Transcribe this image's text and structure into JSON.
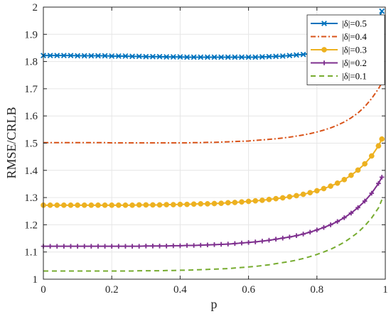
{
  "chart_data": {
    "type": "line",
    "xlabel": "p",
    "ylabel": "RMSE/CRLB",
    "xlim": [
      0,
      1
    ],
    "ylim": [
      1,
      2
    ],
    "x_ticks": [
      "0",
      "0.2",
      "0.4",
      "0.6",
      "0.8",
      "1"
    ],
    "y_ticks": [
      "1",
      "1.1",
      "1.2",
      "1.3",
      "1.4",
      "1.5",
      "1.6",
      "1.7",
      "1.8",
      "1.9",
      "2"
    ],
    "grid": true,
    "legend_position": "top-right",
    "x": [
      0,
      0.02,
      0.04,
      0.06,
      0.08,
      0.1,
      0.12,
      0.14,
      0.16,
      0.18,
      0.2,
      0.22,
      0.24,
      0.26,
      0.28,
      0.3,
      0.32,
      0.34,
      0.36,
      0.38,
      0.4,
      0.42,
      0.44,
      0.46,
      0.48,
      0.5,
      0.52,
      0.54,
      0.56,
      0.58,
      0.6,
      0.62,
      0.64,
      0.66,
      0.68,
      0.7,
      0.72,
      0.74,
      0.76,
      0.78,
      0.8,
      0.82,
      0.84,
      0.86,
      0.88,
      0.9,
      0.92,
      0.94,
      0.96,
      0.98,
      0.99
    ],
    "series": [
      {
        "name": "|δ|=0.5",
        "color": "#0072BD",
        "line_style": "solid",
        "marker": "x",
        "values": [
          1.822,
          1.822,
          1.822,
          1.822,
          1.822,
          1.821,
          1.821,
          1.821,
          1.821,
          1.821,
          1.82,
          1.82,
          1.82,
          1.819,
          1.819,
          1.818,
          1.818,
          1.818,
          1.817,
          1.817,
          1.817,
          1.816,
          1.816,
          1.816,
          1.816,
          1.816,
          1.816,
          1.816,
          1.816,
          1.816,
          1.816,
          1.816,
          1.817,
          1.818,
          1.819,
          1.82,
          1.822,
          1.824,
          1.826,
          1.829,
          1.833,
          1.837,
          1.842,
          1.848,
          1.856,
          1.866,
          1.879,
          1.896,
          1.92,
          1.955,
          1.985
        ]
      },
      {
        "name": "|δ|=0.4",
        "color": "#D95319",
        "line_style": "dashdot",
        "marker": "none",
        "values": [
          1.502,
          1.502,
          1.502,
          1.502,
          1.502,
          1.502,
          1.502,
          1.502,
          1.502,
          1.502,
          1.501,
          1.501,
          1.501,
          1.501,
          1.501,
          1.501,
          1.501,
          1.501,
          1.501,
          1.501,
          1.501,
          1.501,
          1.502,
          1.502,
          1.503,
          1.503,
          1.504,
          1.505,
          1.506,
          1.507,
          1.508,
          1.51,
          1.512,
          1.514,
          1.516,
          1.519,
          1.522,
          1.526,
          1.53,
          1.535,
          1.541,
          1.548,
          1.556,
          1.566,
          1.578,
          1.593,
          1.611,
          1.634,
          1.664,
          1.7,
          1.722
        ]
      },
      {
        "name": "|δ|=0.3",
        "color": "#EDB120",
        "line_style": "solid",
        "marker": "o",
        "values": [
          1.272,
          1.272,
          1.272,
          1.272,
          1.272,
          1.272,
          1.272,
          1.272,
          1.272,
          1.272,
          1.272,
          1.272,
          1.272,
          1.272,
          1.273,
          1.273,
          1.273,
          1.273,
          1.274,
          1.274,
          1.275,
          1.275,
          1.276,
          1.277,
          1.277,
          1.278,
          1.279,
          1.281,
          1.282,
          1.284,
          1.286,
          1.288,
          1.29,
          1.293,
          1.296,
          1.299,
          1.303,
          1.307,
          1.312,
          1.318,
          1.325,
          1.333,
          1.342,
          1.353,
          1.366,
          1.382,
          1.401,
          1.424,
          1.453,
          1.49,
          1.515
        ]
      },
      {
        "name": "|δ|=0.2",
        "color": "#7E2F8E",
        "line_style": "solid",
        "marker": "+",
        "values": [
          1.121,
          1.121,
          1.121,
          1.121,
          1.121,
          1.121,
          1.121,
          1.121,
          1.121,
          1.121,
          1.121,
          1.121,
          1.121,
          1.121,
          1.121,
          1.122,
          1.122,
          1.122,
          1.122,
          1.123,
          1.123,
          1.124,
          1.124,
          1.125,
          1.126,
          1.127,
          1.128,
          1.129,
          1.131,
          1.133,
          1.135,
          1.137,
          1.14,
          1.143,
          1.147,
          1.151,
          1.155,
          1.16,
          1.166,
          1.173,
          1.181,
          1.19,
          1.2,
          1.212,
          1.226,
          1.243,
          1.263,
          1.287,
          1.316,
          1.352,
          1.375
        ]
      },
      {
        "name": "|δ|=0.1",
        "color": "#77AC30",
        "line_style": "dashed",
        "marker": "none",
        "values": [
          1.03,
          1.03,
          1.03,
          1.03,
          1.03,
          1.03,
          1.03,
          1.03,
          1.03,
          1.03,
          1.03,
          1.03,
          1.03,
          1.03,
          1.031,
          1.031,
          1.031,
          1.031,
          1.032,
          1.032,
          1.033,
          1.033,
          1.034,
          1.035,
          1.036,
          1.037,
          1.038,
          1.039,
          1.041,
          1.043,
          1.045,
          1.047,
          1.05,
          1.053,
          1.057,
          1.061,
          1.065,
          1.07,
          1.076,
          1.083,
          1.091,
          1.1,
          1.11,
          1.122,
          1.136,
          1.153,
          1.172,
          1.196,
          1.225,
          1.262,
          1.292
        ]
      }
    ]
  }
}
